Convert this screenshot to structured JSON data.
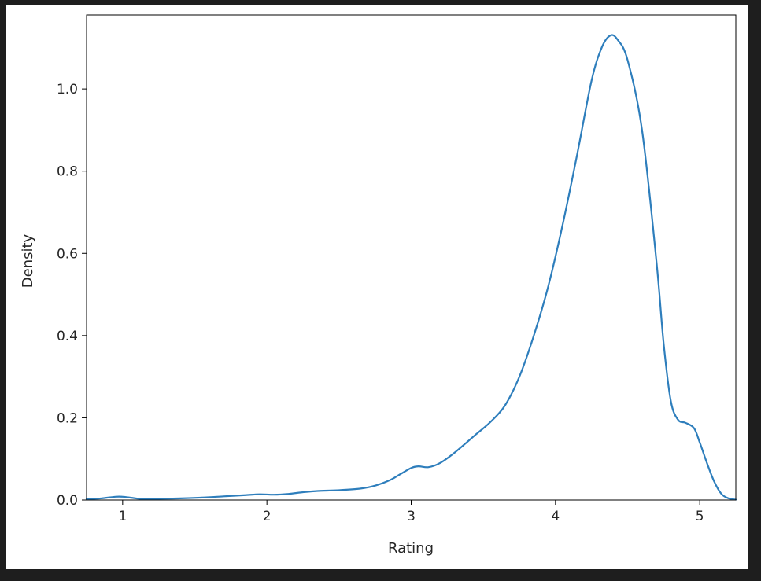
{
  "chart_data": {
    "type": "line",
    "title": "",
    "xlabel": "Rating",
    "ylabel": "Density",
    "xlim": [
      0.75,
      5.25
    ],
    "ylim": [
      0.0,
      1.18
    ],
    "grid": false,
    "legend": "none",
    "x_ticks": [
      1,
      2,
      3,
      4,
      5
    ],
    "x_tick_labels": [
      "1",
      "2",
      "3",
      "4",
      "5"
    ],
    "y_ticks": [
      0.0,
      0.2,
      0.4,
      0.6,
      0.8,
      1.0
    ],
    "y_tick_labels": [
      "0.0",
      "0.2",
      "0.4",
      "0.6",
      "0.8",
      "1.0"
    ],
    "series": [
      {
        "color": "#2e7ebc",
        "x": [
          0.75,
          0.85,
          0.95,
          1.0,
          1.05,
          1.15,
          1.25,
          1.4,
          1.55,
          1.7,
          1.85,
          1.95,
          2.05,
          2.15,
          2.25,
          2.35,
          2.5,
          2.65,
          2.75,
          2.85,
          2.92,
          3.0,
          3.05,
          3.12,
          3.2,
          3.3,
          3.45,
          3.55,
          3.65,
          3.75,
          3.85,
          3.95,
          4.05,
          4.15,
          4.25,
          4.32,
          4.38,
          4.43,
          4.5,
          4.6,
          4.7,
          4.75,
          4.8,
          4.85,
          4.9,
          4.96,
          5.0,
          5.05,
          5.1,
          5.15,
          5.2,
          5.25
        ],
        "y": [
          0.002,
          0.004,
          0.008,
          0.008,
          0.006,
          0.002,
          0.003,
          0.004,
          0.006,
          0.009,
          0.012,
          0.014,
          0.013,
          0.015,
          0.019,
          0.022,
          0.024,
          0.028,
          0.035,
          0.048,
          0.062,
          0.078,
          0.082,
          0.08,
          0.09,
          0.115,
          0.16,
          0.19,
          0.23,
          0.3,
          0.4,
          0.52,
          0.67,
          0.84,
          1.02,
          1.1,
          1.13,
          1.12,
          1.07,
          0.9,
          0.58,
          0.38,
          0.24,
          0.195,
          0.188,
          0.175,
          0.14,
          0.09,
          0.045,
          0.015,
          0.004,
          0.001
        ]
      }
    ]
  }
}
